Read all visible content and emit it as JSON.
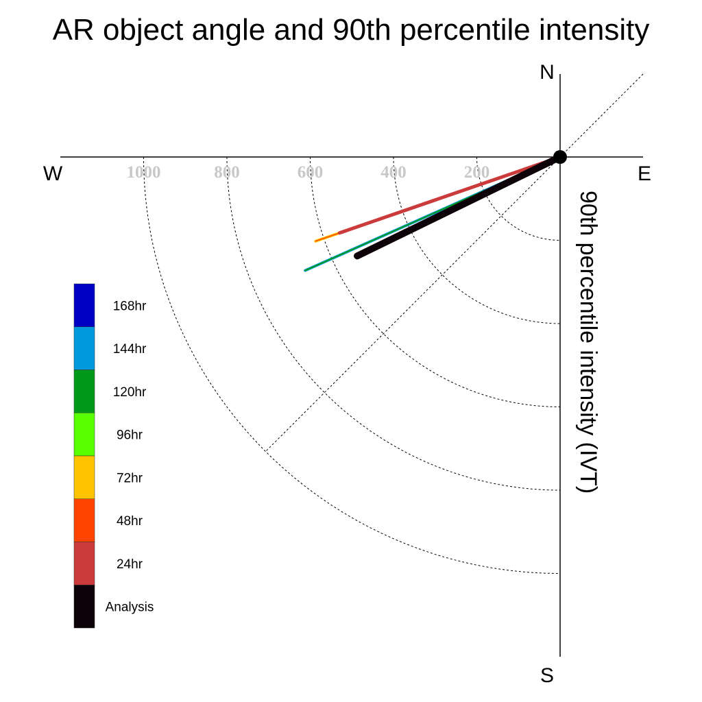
{
  "chart_data": {
    "type": "polar-line",
    "title": "AR object angle and 90th percentile intensity",
    "ylabel": "90th percentile intensity (IVT)",
    "compass": {
      "north": "N",
      "south": "S",
      "east": "E",
      "west": "W"
    },
    "radial_ticks": [
      "200",
      "400",
      "600",
      "800",
      "1000"
    ],
    "radial_tick_values": [
      200,
      400,
      600,
      800,
      1000
    ],
    "radial_max": 1200,
    "grid": true,
    "legend_placement": "left",
    "legend": [
      {
        "label": "168hr",
        "color": "#0000c4"
      },
      {
        "label": "144hr",
        "color": "#0099dd"
      },
      {
        "label": "120hr",
        "color": "#009a18"
      },
      {
        "label": "96hr",
        "color": "#57ff00"
      },
      {
        "label": "72hr",
        "color": "#ffc400"
      },
      {
        "label": "48hr",
        "color": "#ff4400"
      },
      {
        "label": "24hr",
        "color": "#cc3b3b"
      },
      {
        "label": "Analysis",
        "color": "#0d0208"
      }
    ],
    "series": [
      {
        "name": "144hr",
        "angle_deg": 246,
        "value": 670,
        "color": "#0099dd",
        "width": 4
      },
      {
        "name": "120hr",
        "angle_deg": 246,
        "value": 670,
        "color": "#009a18",
        "width": 2
      },
      {
        "name": "72hr",
        "angle_deg": 251,
        "value": 621,
        "color": "#ffc400",
        "width": 4
      },
      {
        "name": "48hr",
        "angle_deg": 251,
        "value": 621,
        "color": "#ff4400",
        "width": 1.5
      },
      {
        "name": "24hr",
        "angle_deg": 251,
        "value": 560,
        "color": "#cc3b3b",
        "width": 5
      },
      {
        "name": "Analysis",
        "angle_deg": 244,
        "value": 542,
        "color": "#0d0208",
        "width": 10
      }
    ]
  }
}
